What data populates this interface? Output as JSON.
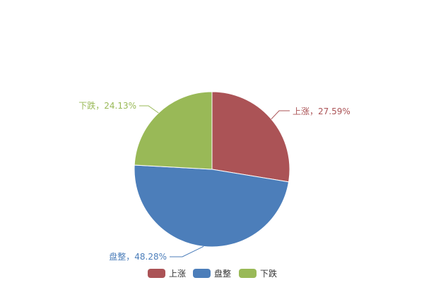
{
  "chart_data": {
    "type": "pie",
    "slices": [
      {
        "name": "上涨",
        "value": 27.59,
        "label": "上涨，27.59%",
        "color": "#AB5356"
      },
      {
        "name": "盘整",
        "value": 48.28,
        "label": "盘整，48.28%",
        "color": "#4C7EBA"
      },
      {
        "name": "下跌",
        "value": 24.13,
        "label": "下跌，24.13%",
        "color": "#99B957"
      }
    ],
    "start_angle": "top",
    "direction": "clockwise",
    "legend": {
      "position": "bottom",
      "items": [
        "上涨",
        "盘整",
        "下跌"
      ]
    }
  }
}
